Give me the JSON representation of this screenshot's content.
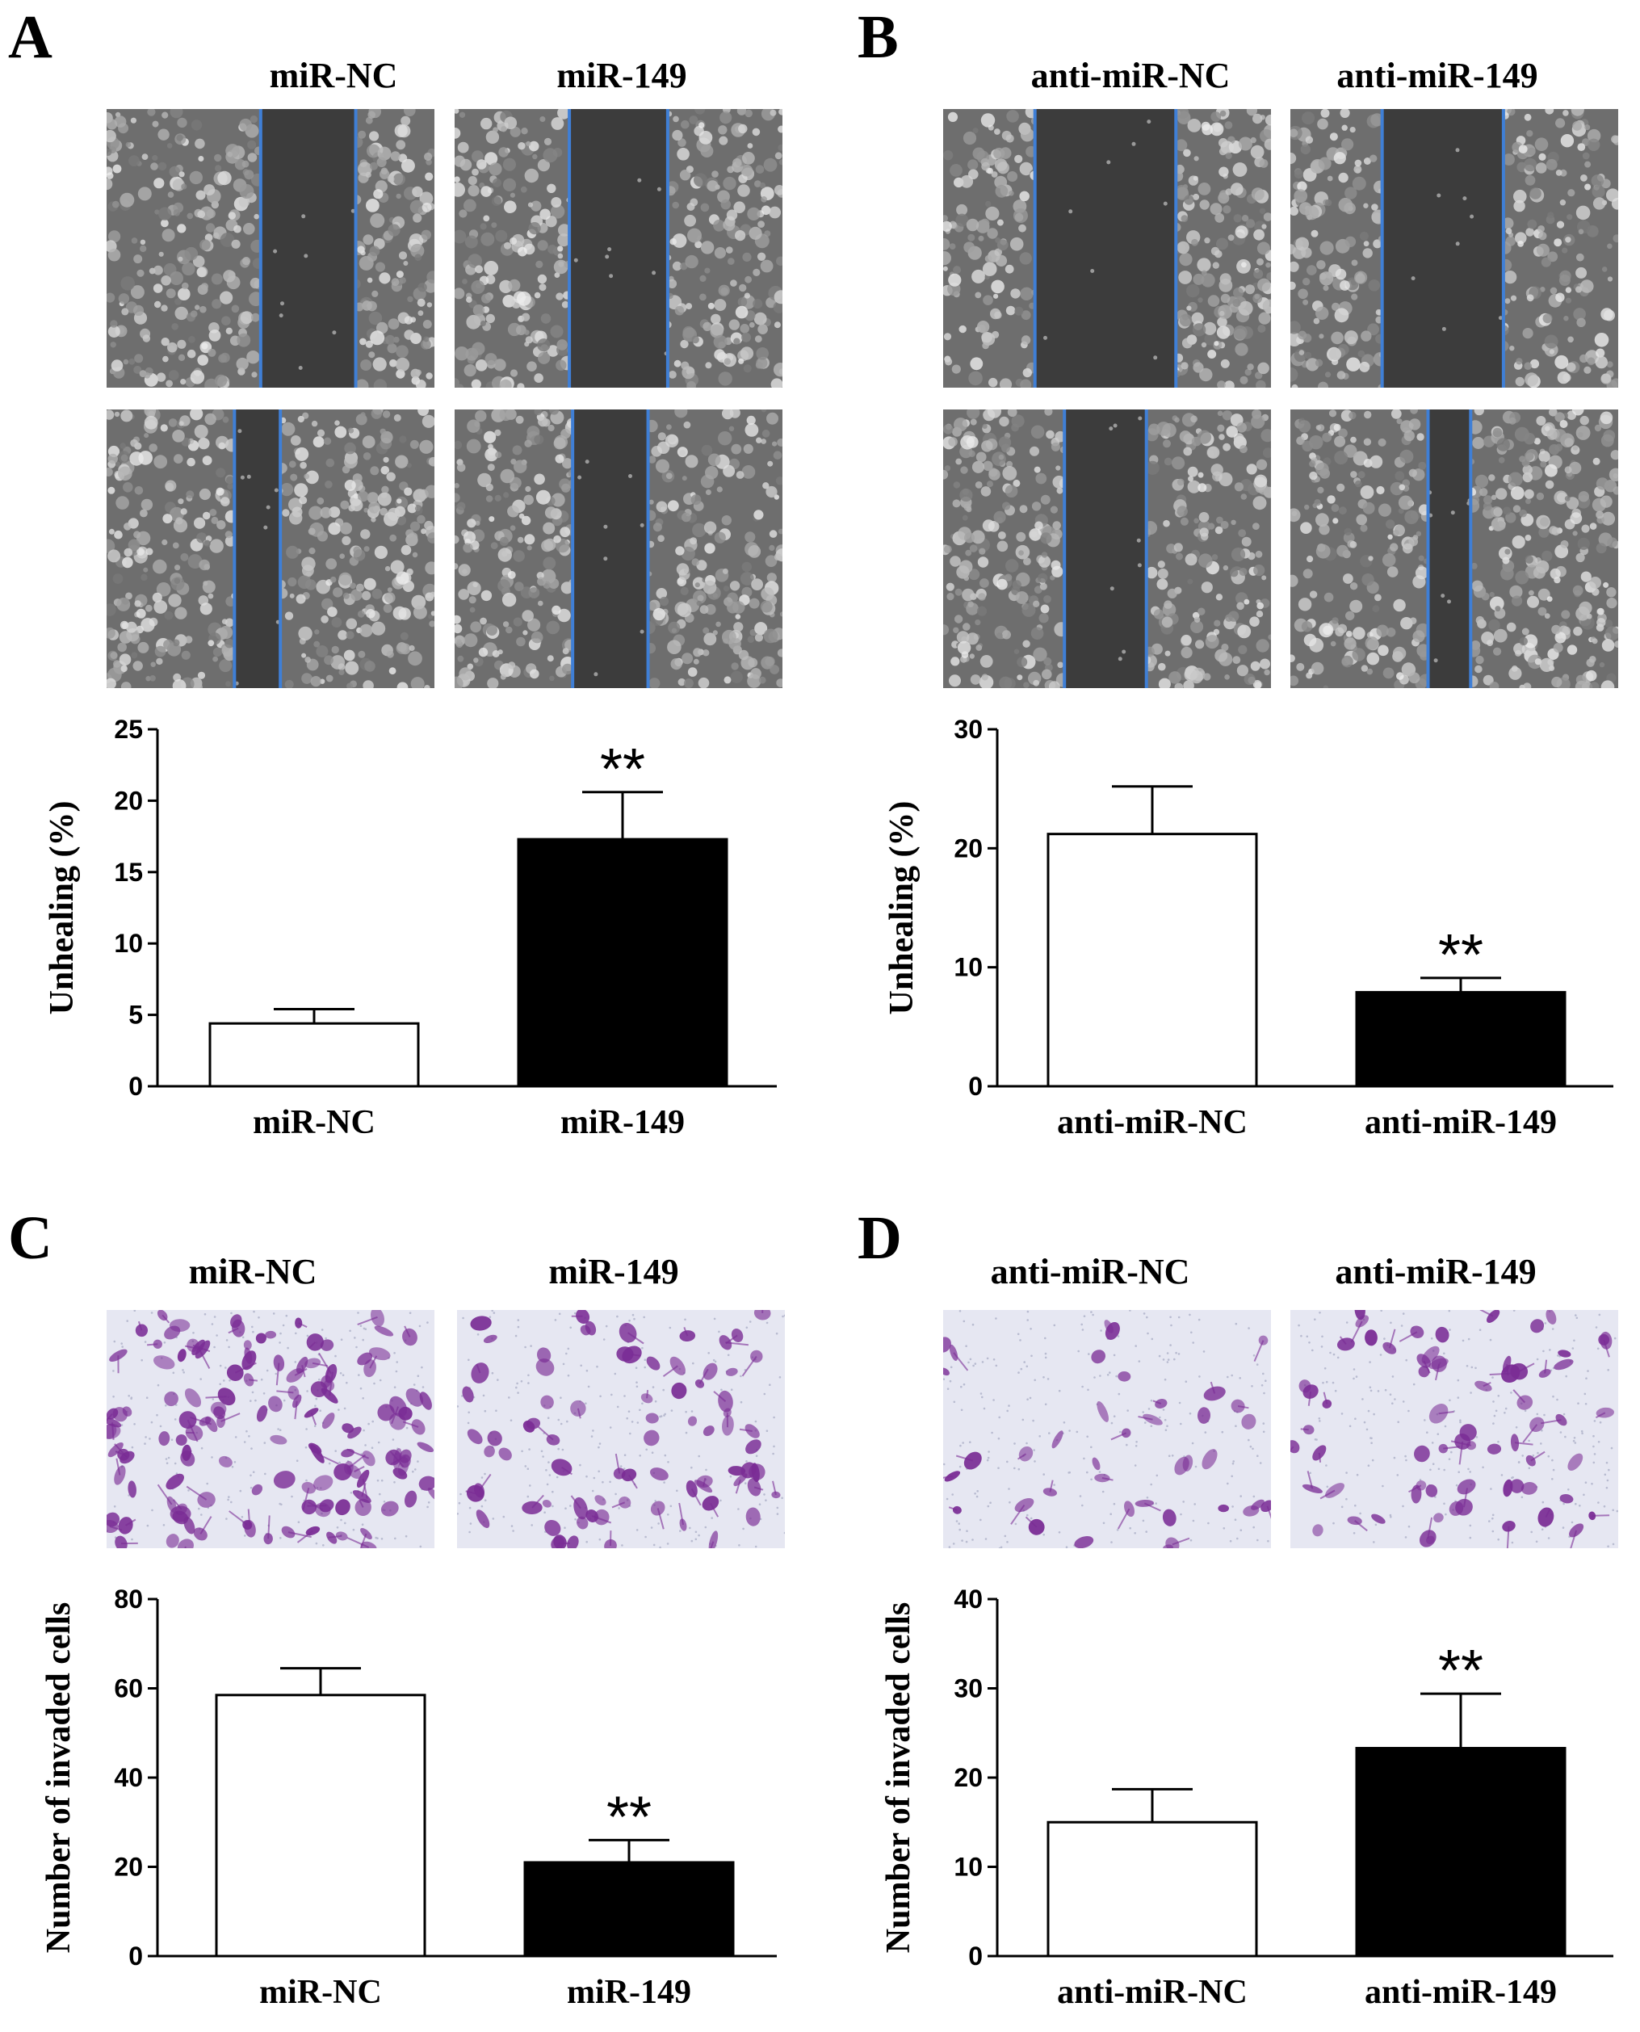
{
  "panels": {
    "A": {
      "letter": "A",
      "col_labels": [
        "miR-NC",
        "miR-149"
      ]
    },
    "B": {
      "letter": "B",
      "col_labels": [
        "anti-miR-NC",
        "anti-miR-149"
      ]
    },
    "C": {
      "letter": "C",
      "col_labels": [
        "miR-NC",
        "miR-149"
      ]
    },
    "D": {
      "letter": "D",
      "col_labels": [
        "anti-miR-NC",
        "anti-miR-149"
      ]
    }
  },
  "colors": {
    "wound_line": "#3f7fd6",
    "scratch_bg": "#6e6e6e",
    "scratch_gap": "#3c3c3c",
    "transwell_bg": "#e6e7f2",
    "stain": "#7a2c95",
    "bar_fill_control": "#ffffff",
    "bar_fill_treated": "#000000",
    "axis": "#000000"
  },
  "chart_data": [
    {
      "panel": "A",
      "type": "bar",
      "categories": [
        "miR-NC",
        "miR-149"
      ],
      "values": [
        4.4,
        17.3
      ],
      "errors": [
        1.0,
        3.3
      ],
      "significance": [
        "",
        "**"
      ],
      "ylabel": "Unhealing (%)",
      "xlabel": "",
      "ylim": [
        0,
        25
      ],
      "yticks": [
        0,
        5,
        10,
        15,
        20,
        25
      ],
      "bar_colors": [
        "#ffffff",
        "#000000"
      ]
    },
    {
      "panel": "B",
      "type": "bar",
      "categories": [
        "anti-miR-NC",
        "anti-miR-149"
      ],
      "values": [
        21.2,
        7.9
      ],
      "errors": [
        4.0,
        1.2
      ],
      "significance": [
        "",
        "**"
      ],
      "ylabel": "Unhealing (%)",
      "xlabel": "",
      "ylim": [
        0,
        30
      ],
      "yticks": [
        0,
        10,
        20,
        30
      ],
      "bar_colors": [
        "#ffffff",
        "#000000"
      ]
    },
    {
      "panel": "C",
      "type": "bar",
      "categories": [
        "miR-NC",
        "miR-149"
      ],
      "values": [
        58.5,
        21
      ],
      "errors": [
        6.0,
        5.0
      ],
      "significance": [
        "",
        "**"
      ],
      "ylabel": "Number of invaded cells",
      "xlabel": "",
      "ylim": [
        0,
        80
      ],
      "yticks": [
        0,
        20,
        40,
        60,
        80
      ],
      "bar_colors": [
        "#ffffff",
        "#000000"
      ]
    },
    {
      "panel": "D",
      "type": "bar",
      "categories": [
        "anti-miR-NC",
        "anti-miR-149"
      ],
      "values": [
        15,
        23.3
      ],
      "errors": [
        3.7,
        6.1
      ],
      "significance": [
        "",
        "**"
      ],
      "ylabel": "Number of invaded cells",
      "xlabel": "",
      "ylim": [
        0,
        40
      ],
      "yticks": [
        0,
        10,
        20,
        30,
        40
      ],
      "bar_colors": [
        "#ffffff",
        "#000000"
      ]
    }
  ]
}
